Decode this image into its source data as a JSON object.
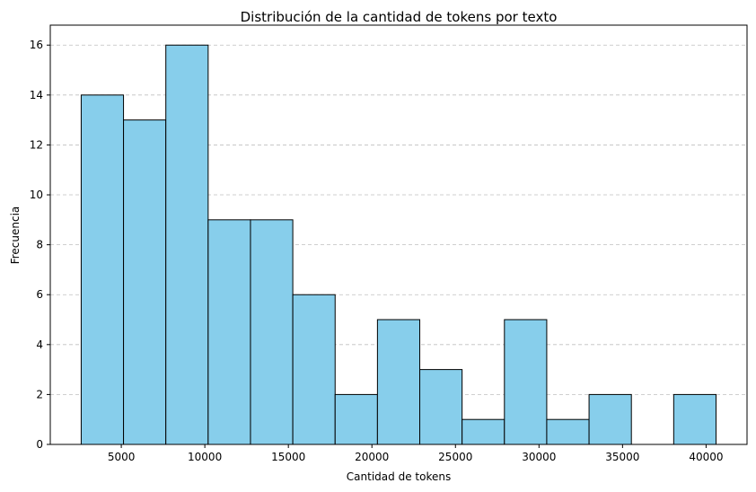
{
  "chart_data": {
    "type": "bar",
    "title": "Distribución de la cantidad de tokens por texto",
    "xlabel": "Cantidad de tokens",
    "ylabel": "Frecuencia",
    "bin_edges": [
      2600,
      5133,
      7666,
      10199,
      12732,
      15265,
      17798,
      20331,
      22864,
      25397,
      27930,
      30463,
      32996,
      35529,
      38062,
      40595
    ],
    "values": [
      14,
      13,
      16,
      9,
      9,
      6,
      2,
      5,
      3,
      1,
      5,
      1,
      2,
      0,
      2
    ],
    "xlim": [
      750,
      42450
    ],
    "ylim": [
      0,
      16.8
    ],
    "xticks": [
      5000,
      10000,
      15000,
      20000,
      25000,
      30000,
      35000,
      40000
    ],
    "yticks": [
      0,
      2,
      4,
      6,
      8,
      10,
      12,
      14,
      16
    ],
    "grid": "y-dashed",
    "bar_color": "#87ceeb",
    "edge_color": "#000000"
  }
}
